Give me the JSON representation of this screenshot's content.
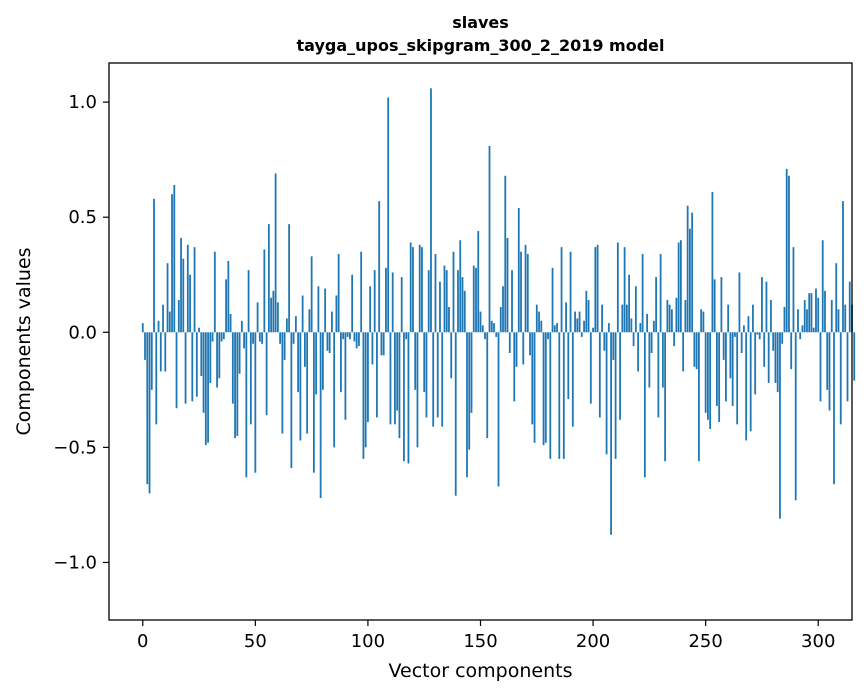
{
  "chart_data": {
    "type": "bar",
    "title": "slaves",
    "subtitle": "tayga_upos_skipgram_300_2_2019 model",
    "xlabel": "Vector components",
    "ylabel": "Components values",
    "xlim": [
      -15,
      315
    ],
    "ylim": [
      -1.25,
      1.17
    ],
    "x_ticks": [
      0,
      50,
      100,
      150,
      200,
      250,
      300
    ],
    "x_tick_labels": [
      "0",
      "50",
      "100",
      "150",
      "200",
      "250",
      "300"
    ],
    "y_ticks": [
      1.0,
      0.5,
      0.0,
      -0.5,
      -1.0
    ],
    "y_tick_labels": [
      "1.0",
      "0.5",
      "0.0",
      "−0.5",
      "−1.0"
    ],
    "bar_color": "#1f77b4",
    "series": [
      {
        "name": "slaves",
        "values": [
          0.04,
          -0.12,
          -0.66,
          -0.7,
          -0.25,
          0.58,
          -0.4,
          0.05,
          -0.17,
          0.12,
          -0.17,
          0.3,
          0.09,
          0.6,
          0.64,
          -0.33,
          0.14,
          0.41,
          0.32,
          -0.31,
          0.38,
          0.25,
          -0.3,
          0.37,
          -0.28,
          0.02,
          -0.19,
          -0.35,
          -0.49,
          -0.48,
          -0.22,
          -0.04,
          0.35,
          -0.24,
          -0.2,
          -0.04,
          -0.03,
          0.23,
          0.31,
          0.08,
          -0.31,
          -0.46,
          -0.45,
          -0.18,
          0.05,
          -0.07,
          -0.63,
          0.27,
          -0.4,
          -0.05,
          -0.61,
          0.13,
          -0.04,
          -0.05,
          0.36,
          -0.36,
          0.47,
          0.15,
          0.18,
          0.69,
          0.13,
          -0.05,
          -0.44,
          -0.12,
          0.06,
          0.47,
          -0.59,
          -0.05,
          0.07,
          -0.26,
          -0.47,
          0.16,
          -0.15,
          -0.44,
          0.1,
          0.33,
          -0.61,
          -0.27,
          0.2,
          -0.72,
          -0.25,
          0.19,
          -0.08,
          -0.09,
          0.09,
          -0.5,
          0.16,
          0.34,
          -0.26,
          -0.03,
          -0.38,
          -0.02,
          -0.03,
          0.25,
          -0.04,
          -0.07,
          -0.06,
          0.35,
          -0.55,
          -0.5,
          -0.39,
          0.2,
          -0.14,
          0.27,
          -0.37,
          0.57,
          -0.1,
          -0.1,
          0.28,
          1.02,
          -0.4,
          0.26,
          -0.4,
          -0.34,
          -0.46,
          0.24,
          -0.56,
          -0.03,
          -0.57,
          0.39,
          0.37,
          -0.25,
          -0.5,
          0.38,
          0.37,
          -0.26,
          -0.37,
          0.27,
          1.06,
          -0.41,
          0.34,
          -0.37,
          0.22,
          -0.41,
          0.29,
          0.27,
          0.11,
          -0.2,
          0.35,
          -0.71,
          0.27,
          0.4,
          0.24,
          0.18,
          -0.63,
          -0.51,
          -0.35,
          0.29,
          0.28,
          0.44,
          0.09,
          0.03,
          -0.03,
          -0.46,
          0.81,
          0.05,
          0.04,
          -0.02,
          -0.67,
          0.11,
          0.2,
          0.68,
          0.41,
          -0.09,
          0.27,
          -0.3,
          -0.15,
          0.54,
          0.35,
          -0.14,
          0.38,
          0.34,
          -0.1,
          -0.4,
          -0.48,
          0.12,
          0.09,
          0.05,
          -0.49,
          -0.48,
          -0.03,
          -0.55,
          0.28,
          0.03,
          0.04,
          -0.55,
          0.37,
          -0.55,
          0.13,
          -0.29,
          0.35,
          -0.41,
          0.09,
          0.06,
          0.09,
          -0.02,
          0.05,
          0.18,
          0.14,
          -0.31,
          0.02,
          0.37,
          0.38,
          -0.37,
          0.12,
          -0.08,
          -0.53,
          0.04,
          -0.88,
          -0.12,
          -0.55,
          0.39,
          -0.38,
          0.12,
          0.37,
          0.12,
          0.25,
          0.06,
          -0.06,
          0.2,
          -0.17,
          0.04,
          0.34,
          -0.63,
          0.08,
          -0.24,
          -0.09,
          0.05,
          0.24,
          -0.37,
          0.34,
          -0.24,
          -0.56,
          0.14,
          0.12,
          0.1,
          -0.06,
          0.15,
          0.39,
          0.4,
          -0.17,
          0.14,
          0.55,
          0.45,
          0.52,
          -0.15,
          -0.16,
          -0.56,
          0.1,
          0.09,
          -0.35,
          -0.38,
          -0.42,
          0.61,
          0.23,
          -0.32,
          -0.39,
          0.24,
          -0.12,
          -0.3,
          0.12,
          -0.2,
          -0.32,
          -0.02,
          -0.4,
          0.26,
          -0.09,
          0.03,
          -0.47,
          0.07,
          -0.43,
          0.12,
          -0.27,
          -0.01,
          -0.03,
          0.24,
          -0.15,
          0.22,
          -0.22,
          0.14,
          -0.08,
          -0.22,
          -0.26,
          -0.81,
          -0.05,
          0.11,
          0.71,
          0.68,
          -0.16,
          0.37,
          -0.73,
          0.1,
          -0.03,
          0.03,
          0.14,
          0.1,
          0.17,
          0.17,
          0.02,
          0.19,
          0.15,
          -0.3,
          0.4,
          0.18,
          -0.25,
          -0.34,
          0.14,
          -0.66,
          0.3,
          0.1,
          -0.4,
          0.57,
          0.12,
          -0.3,
          0.22,
          0.12,
          -0.21
        ]
      }
    ]
  }
}
